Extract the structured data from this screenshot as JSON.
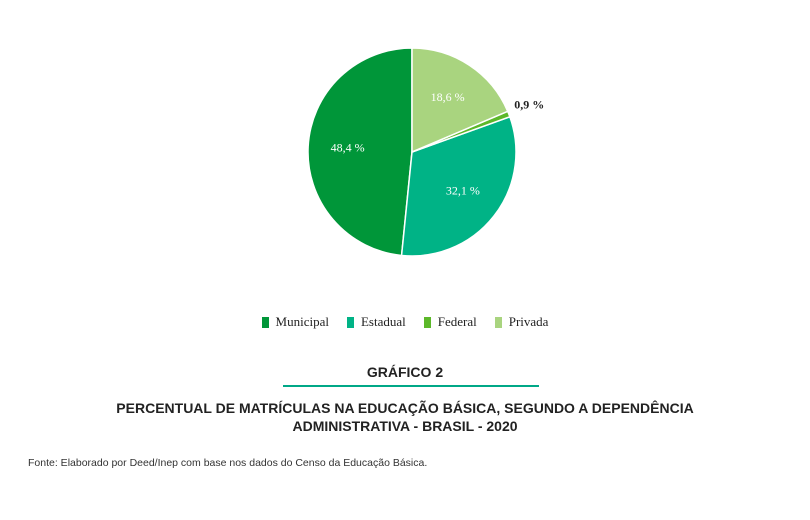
{
  "chart_data": {
    "type": "pie",
    "categories": [
      "Municipal",
      "Estadual",
      "Federal",
      "Privada"
    ],
    "values": [
      48.4,
      32.1,
      0.9,
      18.6
    ],
    "value_labels": [
      "48,4 %",
      "32,1 %",
      "0,9 %",
      "18,6 %"
    ],
    "colors": [
      "#009639",
      "#00b386",
      "#5cb82a",
      "#a9d47f"
    ],
    "caption_label": "GRÁFICO 2",
    "title": "PERCENTUAL DE MATRÍCULAS NA EDUCAÇÃO BÁSICA, SEGUNDO A DEPENDÊNCIA ADMINISTRATIVA - BRASIL - 2020",
    "source": "Fonte: Elaborado por Deed/Inep com base nos dados do Censo da Educação Básica."
  }
}
